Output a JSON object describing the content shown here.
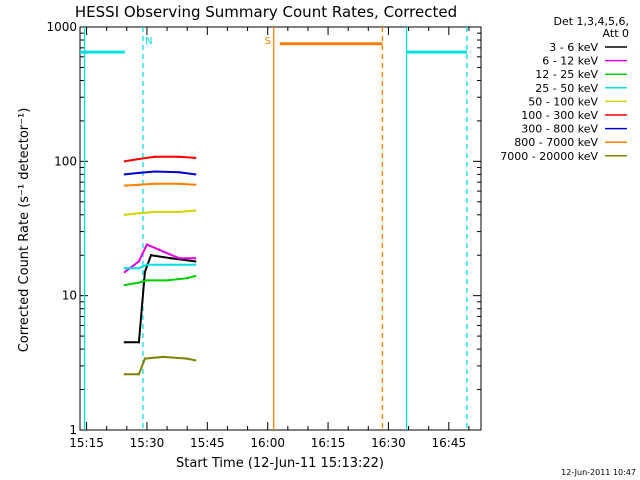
{
  "chart_data": {
    "type": "line",
    "title": "HESSI Observing Summary Count Rates, Corrected",
    "ylabel": "Corrected Count Rate (s⁻¹ detector⁻¹)",
    "xlabel": "Start Time (12-Jun-11 15:13:22)",
    "y_scale": "log",
    "ylim": [
      1,
      1000
    ],
    "xlim": [
      "15:13:22",
      "16:53:00"
    ],
    "x_tick_labels": [
      "15:15",
      "15:30",
      "15:45",
      "16:00",
      "16:15",
      "16:30",
      "16:45"
    ],
    "y_tick_labels": [
      "1",
      "10",
      "100",
      "1000"
    ],
    "legend_header": [
      "Det 1,3,4,5,6,",
      "Att 0"
    ],
    "legend_position": "top-right, outside plot",
    "series": [
      {
        "name": "3 - 6 keV",
        "color": "#000000",
        "points": [
          [
            "15:24:30",
            4.5
          ],
          [
            "15:28:00",
            4.5
          ],
          [
            "15:29:30",
            15
          ],
          [
            "15:31:00",
            20
          ],
          [
            "15:36:00",
            19
          ],
          [
            "15:42:00",
            18
          ]
        ]
      },
      {
        "name": "6 - 12 keV",
        "color": "#e000e0",
        "points": [
          [
            "15:24:30",
            15
          ],
          [
            "15:28:00",
            18
          ],
          [
            "15:30:00",
            24
          ],
          [
            "15:33:00",
            22
          ],
          [
            "15:38:00",
            19
          ],
          [
            "15:42:00",
            19
          ]
        ]
      },
      {
        "name": "12 - 25 keV",
        "color": "#00d000",
        "points": [
          [
            "15:24:30",
            12
          ],
          [
            "15:28:00",
            12.5
          ],
          [
            "15:30:00",
            13
          ],
          [
            "15:35:00",
            13
          ],
          [
            "15:40:00",
            13.5
          ],
          [
            "15:42:00",
            14
          ]
        ]
      },
      {
        "name": "25 - 50 keV",
        "color": "#00e0e0",
        "points": [
          [
            "15:24:30",
            16
          ],
          [
            "15:28:00",
            16
          ],
          [
            "15:30:00",
            17
          ],
          [
            "15:36:00",
            17
          ],
          [
            "15:42:00",
            17
          ]
        ]
      },
      {
        "name": "50 - 100 keV",
        "color": "#d4d400",
        "points": [
          [
            "15:24:30",
            40
          ],
          [
            "15:28:00",
            41
          ],
          [
            "15:32:00",
            42
          ],
          [
            "15:38:00",
            42
          ],
          [
            "15:42:00",
            43
          ]
        ]
      },
      {
        "name": "100 - 300 keV",
        "color": "#ff0000",
        "points": [
          [
            "15:24:30",
            100
          ],
          [
            "15:28:00",
            104
          ],
          [
            "15:32:00",
            108
          ],
          [
            "15:38:00",
            108
          ],
          [
            "15:42:00",
            106
          ]
        ]
      },
      {
        "name": "300 - 800 keV",
        "color": "#0000d0",
        "points": [
          [
            "15:24:30",
            80
          ],
          [
            "15:28:00",
            82
          ],
          [
            "15:32:00",
            84
          ],
          [
            "15:38:00",
            83
          ],
          [
            "15:42:00",
            80
          ]
        ]
      },
      {
        "name": "800 - 7000 keV",
        "color": "#ff8000",
        "points": [
          [
            "15:24:30",
            66
          ],
          [
            "15:28:00",
            67
          ],
          [
            "15:32:00",
            68
          ],
          [
            "15:38:00",
            68
          ],
          [
            "15:42:00",
            67
          ]
        ]
      },
      {
        "name": "7000 - 20000 keV",
        "color": "#808000",
        "points": [
          [
            "15:24:30",
            2.6
          ],
          [
            "15:28:00",
            2.6
          ],
          [
            "15:29:30",
            3.4
          ],
          [
            "15:34:00",
            3.5
          ],
          [
            "15:40:00",
            3.4
          ],
          [
            "15:42:00",
            3.3
          ]
        ]
      }
    ],
    "annotations": [
      {
        "label": "N",
        "time": "15:29:00",
        "color": "#00e0e0",
        "style": "dashed"
      },
      {
        "label": "S",
        "time": "16:01:30",
        "color": "#ff8000",
        "style": "solid"
      }
    ],
    "event_lines": [
      {
        "time": "15:14:30",
        "color": "#00e0e0",
        "style": "solid"
      },
      {
        "time": "15:29:00",
        "color": "#00e0e0",
        "style": "dashed"
      },
      {
        "time": "16:01:30",
        "color": "#ff8000",
        "style": "solid"
      },
      {
        "time": "16:28:30",
        "color": "#ff8000",
        "style": "dashed"
      },
      {
        "time": "16:34:30",
        "color": "#00e0e0",
        "style": "solid"
      },
      {
        "time": "16:49:30",
        "color": "#00e0e0",
        "style": "dashed"
      }
    ],
    "flag_bars": [
      {
        "start": "15:13:22",
        "end": "15:24:30",
        "value": 650,
        "color": "#00e0e0"
      },
      {
        "start": "16:03:00",
        "end": "16:28:30",
        "value": 750,
        "color": "#ff8000"
      },
      {
        "start": "16:34:30",
        "end": "16:49:30",
        "value": 650,
        "color": "#00e0e0"
      }
    ]
  },
  "footer": {
    "timestamp": "12-Jun-2011 10:47"
  }
}
